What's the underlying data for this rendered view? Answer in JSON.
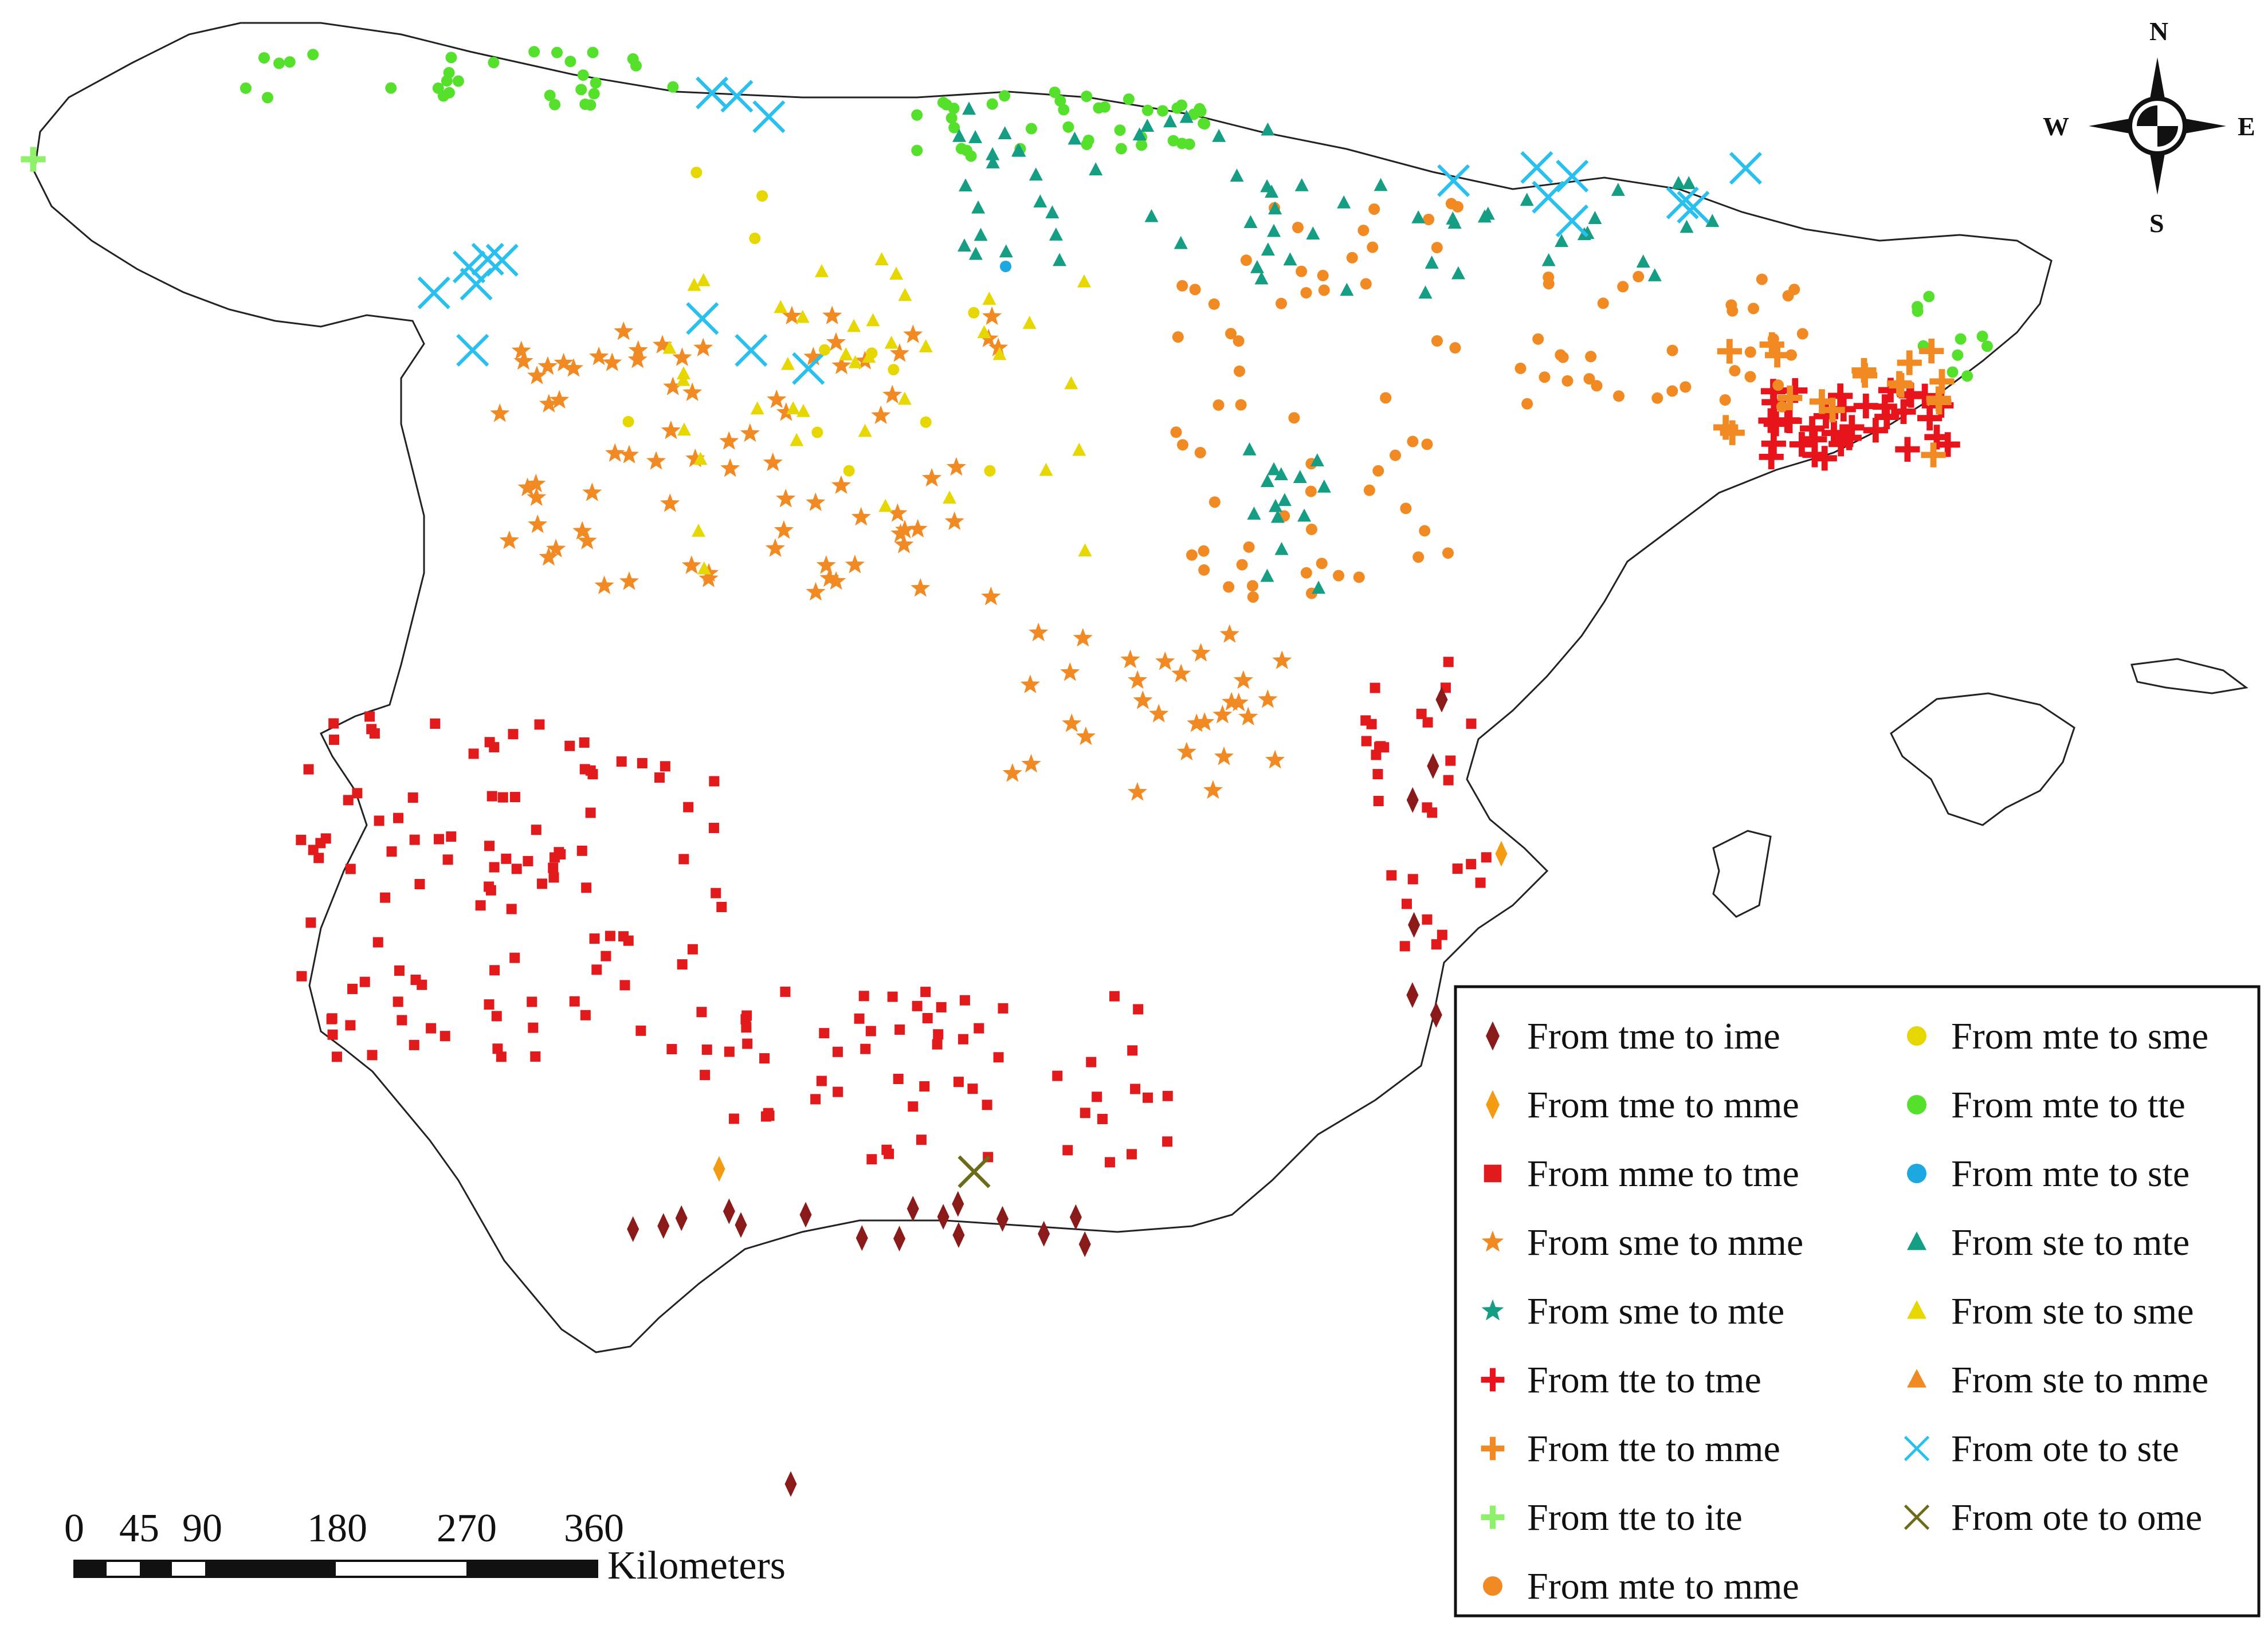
{
  "compass": {
    "north": "N",
    "south": "S",
    "east": "E",
    "west": "W"
  },
  "scale_bar": {
    "ticks": [
      "0",
      "45",
      "90",
      "180",
      "270",
      "360"
    ],
    "unit": "Kilometers"
  },
  "legend": {
    "items": [
      {
        "key": "tme_ime",
        "label": "From tme to ime",
        "symbol": "diamond",
        "color": "#8b1a1a"
      },
      {
        "key": "tme_mme",
        "label": "From tme to mme",
        "symbol": "diamond",
        "color": "#f39c12"
      },
      {
        "key": "mme_tme",
        "label": "From mme to tme",
        "symbol": "square",
        "color": "#e31a1c"
      },
      {
        "key": "sme_mme",
        "label": "From sme to mme",
        "symbol": "star",
        "color": "#f28a24"
      },
      {
        "key": "sme_mte",
        "label": "From sme to mte",
        "symbol": "star",
        "color": "#159e83"
      },
      {
        "key": "tte_tme",
        "label": "From tte to tme",
        "symbol": "plus",
        "color": "#e8141c"
      },
      {
        "key": "tte_mme",
        "label": "From tte to mme",
        "symbol": "plus",
        "color": "#f28a24"
      },
      {
        "key": "tte_ite",
        "label": "From tte to ite",
        "symbol": "plus",
        "color": "#8ff06a"
      },
      {
        "key": "mte_mme",
        "label": "From mte to mme",
        "symbol": "circle",
        "color": "#f28a24"
      },
      {
        "key": "mte_sme",
        "label": "From mte to sme",
        "symbol": "circle",
        "color": "#e6d700"
      },
      {
        "key": "mte_tte",
        "label": "From mte to tte",
        "symbol": "circle",
        "color": "#55e12b"
      },
      {
        "key": "mte_ste",
        "label": "From mte to ste",
        "symbol": "circle",
        "color": "#1ca8e0"
      },
      {
        "key": "ste_mte",
        "label": "From ste to mte",
        "symbol": "triangle",
        "color": "#159e83"
      },
      {
        "key": "ste_sme",
        "label": "From ste to sme",
        "symbol": "triangle",
        "color": "#e6d700"
      },
      {
        "key": "ste_mme",
        "label": "From ste to mme",
        "symbol": "triangle",
        "color": "#f28a24"
      },
      {
        "key": "ote_ste",
        "label": "From ote to ste",
        "symbol": "x",
        "color": "#29c0f0"
      },
      {
        "key": "ote_ome",
        "label": "From ote to ome",
        "symbol": "x",
        "color": "#6b6b1a"
      }
    ]
  }
}
